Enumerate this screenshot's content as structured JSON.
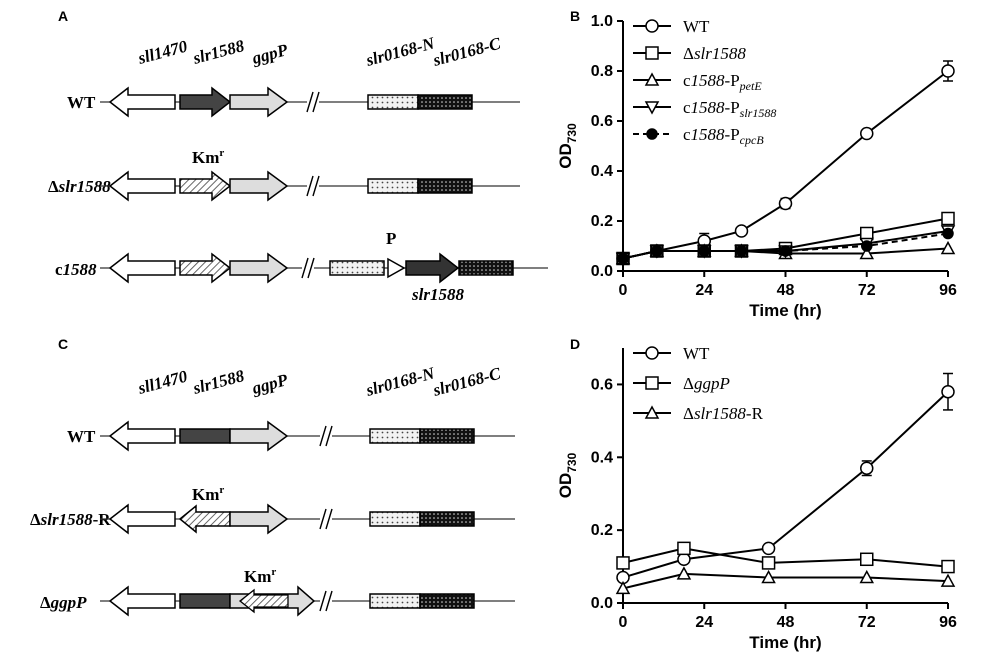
{
  "panels": {
    "A": "A",
    "B": "B",
    "C": "C",
    "D": "D"
  },
  "maps": {
    "gene_sll1470": "sll1470",
    "gene_slr1588": "slr1588",
    "gene_ggpP": "ggpP",
    "gene_slr0168N": "slr0168-N",
    "gene_slr0168C": "slr0168-C",
    "km_base": "Km",
    "km_sup": "r",
    "promoter": "P",
    "slr1588_insert": "slr1588",
    "A_rows": {
      "wt": "WT",
      "delta": "Δ",
      "del_name": "slr1588",
      "c_prefix": "c",
      "c_name": "1588"
    },
    "C_rows": {
      "wt": "WT",
      "delta": "Δ",
      "delR_name": "slr1588",
      "delR_suffix": "-R",
      "ggp_name": "ggpP"
    }
  },
  "chart_data": [
    {
      "panel": "B",
      "type": "line",
      "xlabel": "Time (hr)",
      "ylabel_base": "OD",
      "ylabel_sub": "730",
      "xlim": [
        0,
        96
      ],
      "ylim": [
        0,
        1.0
      ],
      "xticks": [
        "0",
        "24",
        "48",
        "72",
        "96"
      ],
      "yticks": [
        "0.0",
        "0.2",
        "0.4",
        "0.6",
        "0.8",
        "1.0"
      ],
      "legend_position": "top-left",
      "series": [
        {
          "name": "WT",
          "legend_parts": [
            [
              "WT",
              ""
            ]
          ],
          "marker": "circle",
          "dash": false,
          "x": [
            0,
            10,
            24,
            35,
            48,
            72,
            96
          ],
          "values": [
            0.05,
            0.08,
            0.12,
            0.16,
            0.27,
            0.55,
            0.8
          ],
          "err": [
            0,
            0,
            0.03,
            0,
            0.02,
            0,
            0.04
          ]
        },
        {
          "name": "Δslr1588",
          "legend_parts": [
            [
              "Δ",
              ""
            ],
            [
              "slr1588",
              "i"
            ]
          ],
          "marker": "square",
          "dash": false,
          "x": [
            0,
            10,
            24,
            35,
            48,
            72,
            96
          ],
          "values": [
            0.05,
            0.08,
            0.08,
            0.08,
            0.09,
            0.15,
            0.21
          ],
          "err": [
            0,
            0,
            0,
            0,
            0.01,
            0,
            0.01
          ]
        },
        {
          "name": "c1588-PpetE",
          "legend_parts": [
            [
              "c",
              ""
            ],
            [
              "1588",
              "i"
            ],
            [
              "-P",
              ""
            ],
            [
              "petE",
              "si"
            ]
          ],
          "marker": "triangle-up",
          "dash": false,
          "x": [
            0,
            10,
            24,
            35,
            48,
            72,
            96
          ],
          "values": [
            0.05,
            0.08,
            0.08,
            0.08,
            0.07,
            0.07,
            0.09
          ],
          "err": [
            0,
            0,
            0,
            0,
            0,
            0,
            0
          ]
        },
        {
          "name": "c1588-Pslr1588",
          "legend_parts": [
            [
              "c",
              ""
            ],
            [
              "1588",
              "i"
            ],
            [
              "-P",
              ""
            ],
            [
              "slr1588",
              "si"
            ]
          ],
          "marker": "triangle-down",
          "dash": false,
          "x": [
            0,
            10,
            24,
            35,
            48,
            72,
            96
          ],
          "values": [
            0.05,
            0.08,
            0.08,
            0.08,
            0.08,
            0.11,
            0.16
          ],
          "err": [
            0,
            0,
            0,
            0,
            0,
            0,
            0
          ]
        },
        {
          "name": "c1588-PcpcB",
          "legend_parts": [
            [
              "c",
              ""
            ],
            [
              "1588",
              "i"
            ],
            [
              "-P",
              ""
            ],
            [
              "cpcB",
              "si"
            ]
          ],
          "marker": "filled-circle",
          "dash": true,
          "x": [
            0,
            10,
            24,
            35,
            48,
            72,
            96
          ],
          "values": [
            0.05,
            0.08,
            0.08,
            0.08,
            0.08,
            0.1,
            0.15
          ],
          "err": [
            0,
            0,
            0,
            0,
            0,
            0,
            0
          ]
        }
      ]
    },
    {
      "panel": "D",
      "type": "line",
      "xlabel": "Time (hr)",
      "ylabel_base": "OD",
      "ylabel_sub": "730",
      "xlim": [
        0,
        96
      ],
      "ylim": [
        0,
        0.7
      ],
      "xticks": [
        "0",
        "24",
        "48",
        "72",
        "96"
      ],
      "yticks": [
        "0.0",
        "0.2",
        "0.4",
        "0.6"
      ],
      "legend_position": "top-left",
      "series": [
        {
          "name": "WT",
          "legend_parts": [
            [
              "WT",
              ""
            ]
          ],
          "marker": "circle",
          "dash": false,
          "x": [
            0,
            18,
            43,
            72,
            96
          ],
          "values": [
            0.07,
            0.12,
            0.15,
            0.37,
            0.58
          ],
          "err": [
            0,
            0,
            0,
            0.02,
            0.05
          ]
        },
        {
          "name": "ΔggpP",
          "legend_parts": [
            [
              "Δ",
              ""
            ],
            [
              "ggpP",
              "i"
            ]
          ],
          "marker": "square",
          "dash": false,
          "x": [
            0,
            18,
            43,
            72,
            96
          ],
          "values": [
            0.11,
            0.15,
            0.11,
            0.12,
            0.1
          ],
          "err": [
            0,
            0,
            0,
            0,
            0
          ]
        },
        {
          "name": "Δslr1588-R",
          "legend_parts": [
            [
              "Δ",
              ""
            ],
            [
              "slr1588",
              "i"
            ],
            [
              "-R",
              ""
            ]
          ],
          "marker": "triangle-up",
          "dash": false,
          "x": [
            0,
            18,
            43,
            72,
            96
          ],
          "values": [
            0.04,
            0.08,
            0.07,
            0.07,
            0.06
          ],
          "err": [
            0,
            0,
            0,
            0,
            0
          ]
        }
      ]
    }
  ]
}
